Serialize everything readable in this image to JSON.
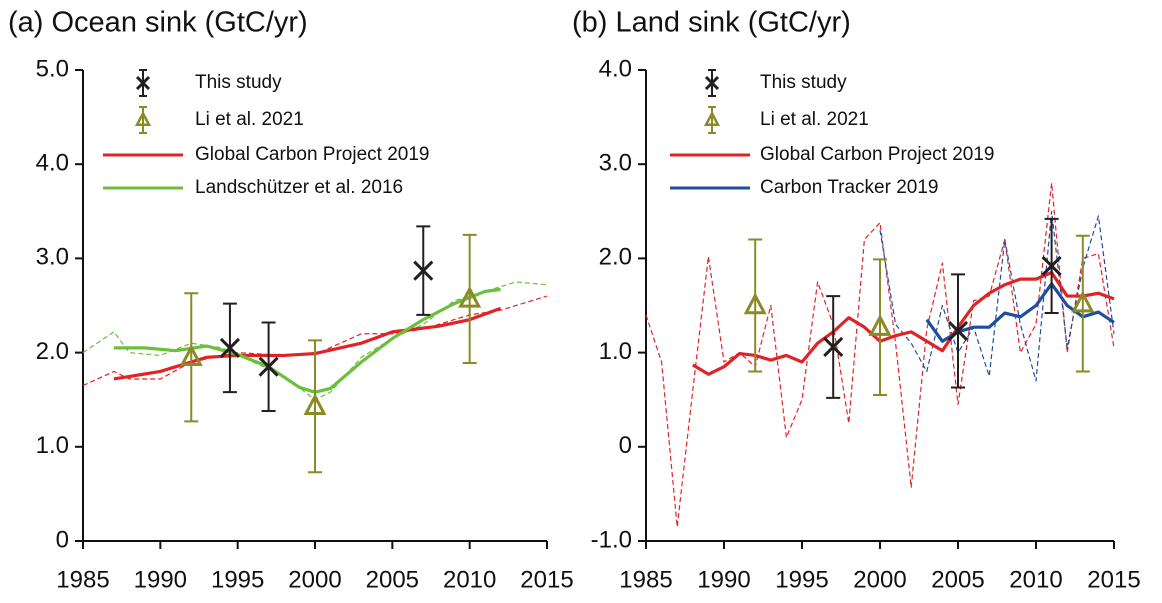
{
  "chart_data": [
    {
      "type": "line",
      "title": "(a) Ocean sink (GtC/yr)",
      "xlim": [
        1985,
        2015
      ],
      "xticks": [
        1985,
        1990,
        1995,
        2000,
        2005,
        2010,
        2015
      ],
      "ylim": [
        0,
        5
      ],
      "yticks": [
        0,
        {
          "value": 1,
          "label": "1.0"
        },
        {
          "value": 2,
          "label": "2.0"
        },
        {
          "value": 3,
          "label": "3.0"
        },
        {
          "value": 4,
          "label": "4.0"
        },
        {
          "value": 5,
          "label": "5.0"
        }
      ],
      "series": [
        {
          "name": "This study",
          "type": "errorbar",
          "marker": "x",
          "color": "#231f20",
          "x": [
            1994.5,
            1997,
            2007
          ],
          "values": [
            2.05,
            1.85,
            2.87
          ],
          "errors": [
            0.47,
            0.47,
            0.47
          ]
        },
        {
          "name": "Li et al. 2021",
          "type": "errorbar",
          "marker": "triangle",
          "color": "#8a8a26",
          "x": [
            1992,
            2000,
            2010
          ],
          "values": [
            1.95,
            1.43,
            2.57
          ],
          "errors": [
            0.68,
            0.7,
            0.68
          ]
        },
        {
          "name": "Global Carbon Project 2019",
          "type": "line",
          "color": "#e02327",
          "x": [
            1987,
            1990,
            1993,
            1995,
            1998,
            2000,
            2003,
            2005,
            2008,
            2010,
            2012
          ],
          "values": [
            1.72,
            1.8,
            1.95,
            1.97,
            1.97,
            1.99,
            2.1,
            2.22,
            2.28,
            2.35,
            2.47
          ]
        },
        {
          "name": "Landschützer et al. 2016",
          "type": "line",
          "color": "#6cbf3c",
          "x": [
            1987,
            1989,
            1991,
            1993,
            1995,
            1997,
            1999,
            2000,
            2001,
            2003,
            2005,
            2007,
            2009,
            2011,
            2012
          ],
          "values": [
            2.05,
            2.05,
            2.02,
            2.07,
            1.98,
            1.85,
            1.63,
            1.58,
            1.62,
            1.9,
            2.15,
            2.35,
            2.52,
            2.65,
            2.67
          ]
        },
        {
          "type": "line",
          "dashed": true,
          "color": "#e02327",
          "x": [
            1985,
            1987,
            1988,
            1990,
            1992,
            1995,
            1998,
            2000,
            2003,
            2005,
            2007,
            2010,
            2012,
            2015
          ],
          "values": [
            1.65,
            1.8,
            1.72,
            1.72,
            1.9,
            2.0,
            1.97,
            1.98,
            2.2,
            2.2,
            2.25,
            2.4,
            2.45,
            2.6
          ]
        },
        {
          "type": "line",
          "dashed": true,
          "color": "#6cbf3c",
          "x": [
            1985,
            1987,
            1988,
            1990,
            1992,
            1994,
            1996,
            1998,
            2000,
            2001,
            2003,
            2005,
            2007,
            2009,
            2011,
            2013,
            2015
          ],
          "values": [
            2.0,
            2.22,
            2.0,
            1.97,
            2.1,
            2.05,
            1.9,
            1.75,
            1.5,
            1.58,
            1.95,
            2.15,
            2.3,
            2.55,
            2.65,
            2.75,
            2.72
          ]
        }
      ]
    },
    {
      "type": "line",
      "title": "(b) Land sink (GtC/yr)",
      "xlim": [
        1985,
        2015
      ],
      "xticks": [
        1985,
        1990,
        1995,
        2000,
        2005,
        2010,
        2015
      ],
      "ylim": [
        -1,
        4
      ],
      "yticks": [
        {
          "value": -1,
          "label": "-1.0"
        },
        0,
        {
          "value": 1,
          "label": "1.0"
        },
        {
          "value": 2,
          "label": "2.0"
        },
        {
          "value": 3,
          "label": "3.0"
        },
        {
          "value": 4,
          "label": "4.0"
        }
      ],
      "series": [
        {
          "name": "This study",
          "type": "errorbar",
          "marker": "x",
          "color": "#231f20",
          "x": [
            1997,
            2005,
            2011
          ],
          "values": [
            1.06,
            1.23,
            1.92
          ],
          "errors": [
            0.54,
            0.6,
            0.5
          ]
        },
        {
          "name": "Li et al. 2021",
          "type": "errorbar",
          "marker": "triangle",
          "color": "#8a8a26",
          "x": [
            1992,
            2000,
            2013
          ],
          "values": [
            1.5,
            1.27,
            1.52
          ],
          "errors": [
            0.7,
            0.72,
            0.72
          ]
        },
        {
          "name": "Global Carbon Project 2019",
          "type": "line",
          "color": "#e02327",
          "x": [
            1988,
            1989,
            1990,
            1991,
            1992,
            1993,
            1994,
            1995,
            1996,
            1997,
            1998,
            1999,
            2000,
            2001,
            2002,
            2003,
            2004,
            2005,
            2006,
            2007,
            2008,
            2009,
            2010,
            2011,
            2012,
            2013,
            2014,
            2015
          ],
          "values": [
            0.87,
            0.77,
            0.85,
            0.99,
            0.97,
            0.92,
            0.97,
            0.9,
            1.1,
            1.22,
            1.37,
            1.27,
            1.12,
            1.18,
            1.22,
            1.12,
            1.02,
            1.27,
            1.5,
            1.63,
            1.72,
            1.78,
            1.78,
            1.85,
            1.6,
            1.6,
            1.63,
            1.57
          ]
        },
        {
          "name": "Carbon Tracker 2019",
          "type": "line",
          "color": "#1f4e9c",
          "x": [
            2003,
            2004,
            2005,
            2006,
            2007,
            2008,
            2009,
            2010,
            2011,
            2012,
            2013,
            2014,
            2015
          ],
          "values": [
            1.35,
            1.12,
            1.22,
            1.27,
            1.27,
            1.42,
            1.38,
            1.5,
            1.73,
            1.5,
            1.38,
            1.43,
            1.32
          ]
        },
        {
          "type": "line",
          "dashed": true,
          "color": "#e02327",
          "x": [
            1985,
            1986,
            1987,
            1988,
            1989,
            1990,
            1991,
            1992,
            1993,
            1994,
            1995,
            1996,
            1997,
            1998,
            1999,
            2000,
            2001,
            2002,
            2003,
            2004,
            2005,
            2006,
            2007,
            2008,
            2009,
            2010,
            2011,
            2012,
            2013,
            2014,
            2015
          ],
          "values": [
            1.4,
            0.9,
            -0.85,
            0.6,
            2.02,
            0.9,
            1.0,
            0.85,
            1.5,
            0.1,
            0.5,
            1.75,
            1.3,
            0.25,
            2.2,
            2.38,
            1.1,
            -0.43,
            1.25,
            1.95,
            0.45,
            1.55,
            1.6,
            2.2,
            1.0,
            1.3,
            2.8,
            1.0,
            2.0,
            2.05,
            1.05
          ]
        },
        {
          "type": "line",
          "dashed": true,
          "color": "#1f4e9c",
          "x": [
            2000,
            2001,
            2002,
            2003,
            2004,
            2005,
            2006,
            2007,
            2008,
            2009,
            2010,
            2011,
            2012,
            2013,
            2014,
            2015
          ],
          "values": [
            2.3,
            1.3,
            1.1,
            0.8,
            1.5,
            1.0,
            1.27,
            0.75,
            2.2,
            1.3,
            0.7,
            2.5,
            1.05,
            1.9,
            2.45,
            1.2
          ]
        }
      ]
    }
  ]
}
